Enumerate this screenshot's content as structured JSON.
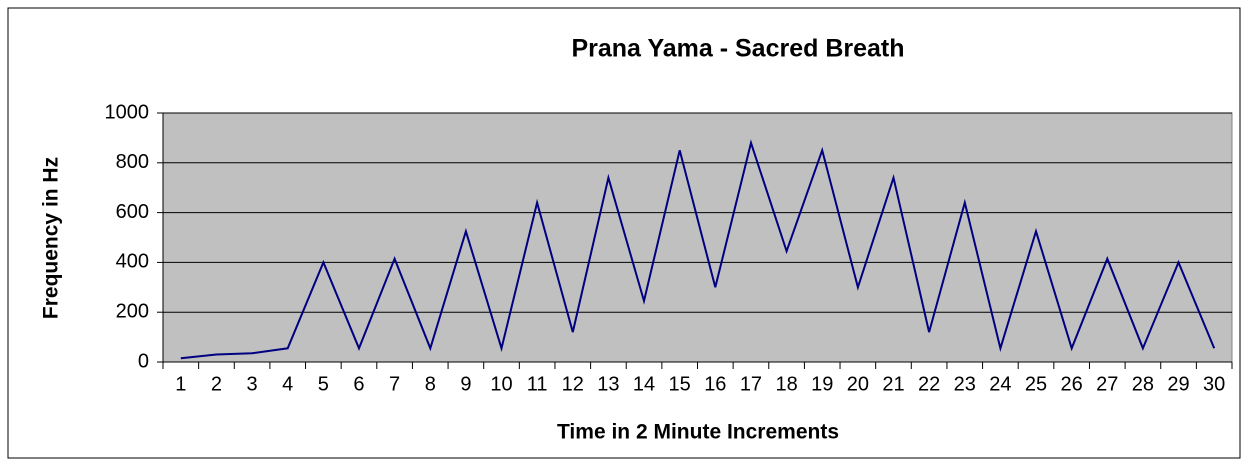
{
  "chart_data": {
    "type": "line",
    "title": "Prana Yama - Sacred Breath",
    "x_label": "Time in 2 Minute Increments",
    "y_label": "Frequency in Hz",
    "categories": [
      "1",
      "2",
      "3",
      "4",
      "5",
      "6",
      "7",
      "8",
      "9",
      "10",
      "11",
      "12",
      "13",
      "14",
      "15",
      "16",
      "17",
      "18",
      "19",
      "20",
      "21",
      "22",
      "23",
      "24",
      "25",
      "26",
      "27",
      "28",
      "29",
      "30"
    ],
    "series": [
      {
        "name": "Frequency",
        "color": "#000080",
        "values": [
          15,
          30,
          35,
          55,
          400,
          55,
          415,
          55,
          525,
          55,
          640,
          120,
          740,
          245,
          850,
          300,
          880,
          445,
          850,
          300,
          740,
          120,
          640,
          55,
          525,
          55,
          415,
          55,
          400,
          55
        ]
      }
    ],
    "ylim": [
      0,
      1000
    ],
    "yticks": [
      0,
      200,
      400,
      600,
      800,
      1000
    ],
    "grid": true
  }
}
